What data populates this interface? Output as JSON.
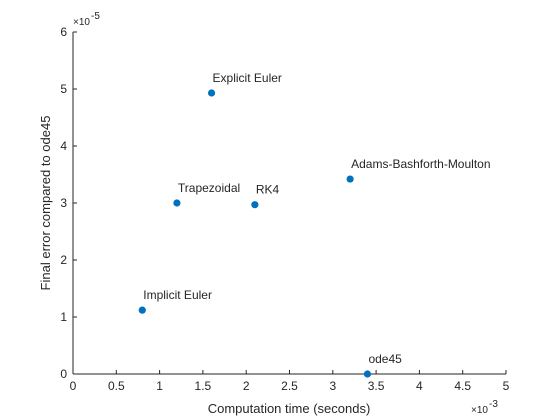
{
  "chart_data": {
    "type": "scatter",
    "xlabel": "Computation time (seconds)",
    "ylabel": "Final error compared to ode45",
    "xlim": [
      0,
      0.005
    ],
    "ylim": [
      0,
      6e-05
    ],
    "x_exponent": "-3",
    "y_exponent": "-5",
    "x_ticks": [
      "0",
      "0.5",
      "1",
      "1.5",
      "2",
      "2.5",
      "3",
      "3.5",
      "4",
      "4.5",
      "5"
    ],
    "y_ticks": [
      "0",
      "1",
      "2",
      "3",
      "4",
      "5",
      "6"
    ],
    "points": [
      {
        "label": "Explicit Euler",
        "x": 0.0016,
        "y": 4.93e-05
      },
      {
        "label": "Trapezoidal",
        "x": 0.0012,
        "y": 3e-05
      },
      {
        "label": "RK4",
        "x": 0.0021,
        "y": 2.97e-05
      },
      {
        "label": "Adams-Bashforth-Moulton",
        "x": 0.0032,
        "y": 3.42e-05
      },
      {
        "label": "Implicit Euler",
        "x": 0.0008,
        "y": 1.12e-05
      },
      {
        "label": "ode45",
        "x": 0.0034,
        "y": 0.0
      }
    ],
    "grid": false,
    "marker_color": "#0072BD"
  }
}
